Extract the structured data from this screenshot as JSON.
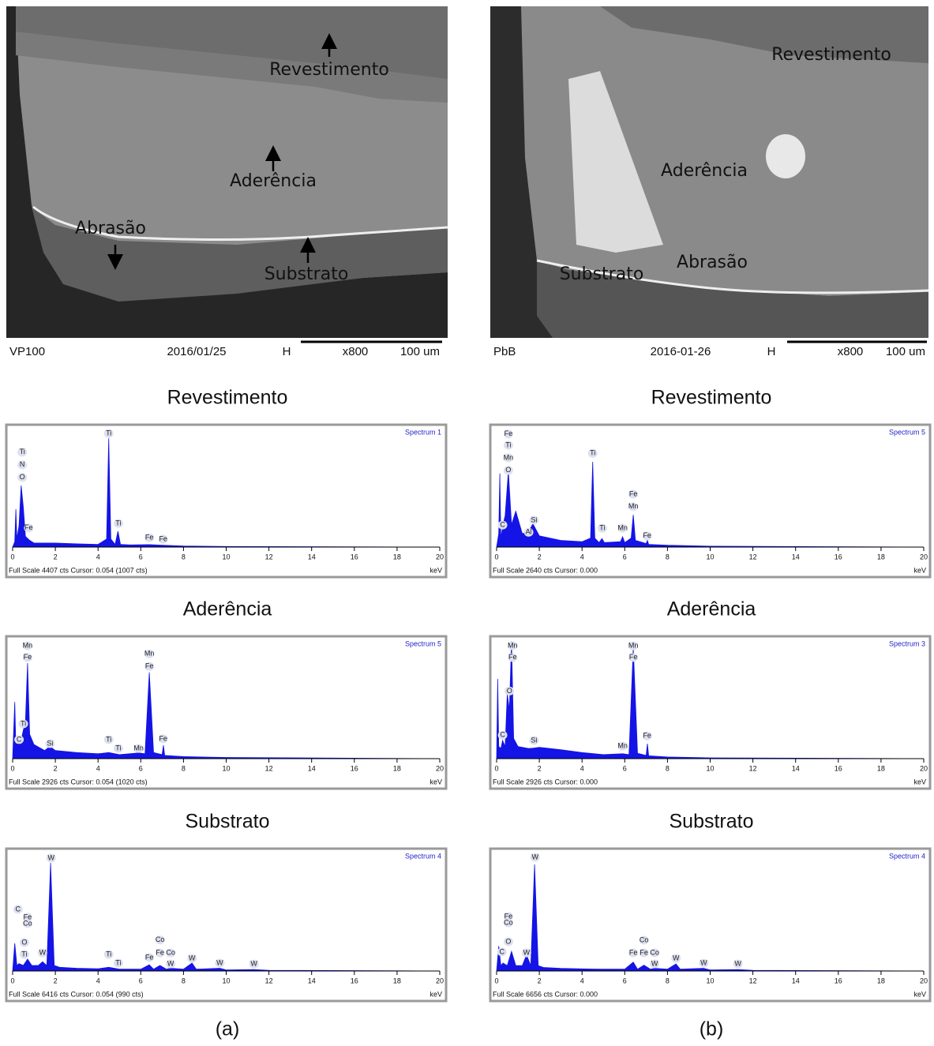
{
  "panels": [
    {
      "labels": [
        "Revestimento",
        "Aderência",
        "Abrasão",
        "Substrato"
      ],
      "info": [
        "VP100",
        "2016/01/25",
        "H",
        "x800",
        "100 um"
      ],
      "caption": "(a)"
    },
    {
      "labels": [
        "Revestimento",
        "Aderência",
        "Substrato",
        "Abrasão"
      ],
      "info": [
        "PbB",
        "2016-01-26",
        "H",
        "x800",
        "100 um"
      ],
      "caption": "(b)"
    }
  ],
  "chart_data": [
    {
      "type": "area",
      "title": "Revestimento",
      "spectrum": "Spectrum 1",
      "footer": "Full Scale 4407 cts Cursor: 0.054  (1007 cts)",
      "x_label": "keV",
      "color": "#1414e6",
      "xlim": [
        0,
        20
      ],
      "ylim": [
        0,
        4407
      ],
      "xticks": [
        0,
        2,
        4,
        6,
        8,
        10,
        12,
        14,
        16,
        18,
        20
      ],
      "x": [
        0,
        0.1,
        0.15,
        0.2,
        0.3,
        0.4,
        0.5,
        0.6,
        0.8,
        1,
        2,
        3,
        4,
        4.4,
        4.5,
        4.6,
        4.8,
        4.93,
        5.05,
        5.5,
        6.4,
        7,
        8,
        10,
        20
      ],
      "values": [
        0,
        200,
        1410,
        300,
        800,
        2290,
        1500,
        400,
        250,
        150,
        150,
        120,
        100,
        300,
        4050,
        300,
        100,
        590,
        100,
        80,
        90,
        70,
        40,
        20,
        0
      ],
      "annotations": [
        {
          "text": "Ti",
          "x": 0.45,
          "y": 3530
        },
        {
          "text": "N",
          "x": 0.45,
          "y": 3060
        },
        {
          "text": "O",
          "x": 0.45,
          "y": 2590
        },
        {
          "text": "Fe",
          "x": 0.75,
          "y": 710
        },
        {
          "text": "Ti",
          "x": 4.5,
          "y": 4230
        },
        {
          "text": "Ti",
          "x": 4.95,
          "y": 880
        },
        {
          "text": "Fe",
          "x": 6.4,
          "y": 350
        },
        {
          "text": "Fe",
          "x": 7.05,
          "y": 290
        }
      ]
    },
    {
      "type": "area",
      "title": "Revestimento",
      "spectrum": "Spectrum 5",
      "footer": "Full Scale 2640 cts Cursor: 0.000",
      "x_label": "keV",
      "color": "#1414e6",
      "xlim": [
        0,
        20
      ],
      "ylim": [
        0,
        2640
      ],
      "xticks": [
        0,
        2,
        4,
        6,
        8,
        10,
        12,
        14,
        16,
        18,
        20
      ],
      "x": [
        0,
        0.1,
        0.15,
        0.2,
        0.3,
        0.4,
        0.55,
        0.7,
        0.9,
        1.2,
        1.5,
        1.7,
        2,
        3,
        4,
        4.4,
        4.5,
        4.6,
        4.8,
        4.93,
        5.05,
        5.8,
        5.9,
        6.0,
        6.3,
        6.4,
        6.5,
        7.0,
        7.06,
        7.12,
        8,
        10,
        20
      ],
      "values": [
        0,
        300,
        1640,
        200,
        500,
        700,
        1690,
        500,
        800,
        300,
        350,
        520,
        250,
        150,
        120,
        200,
        1900,
        200,
        100,
        190,
        100,
        120,
        230,
        100,
        200,
        720,
        150,
        80,
        150,
        60,
        40,
        20,
        0
      ],
      "annotations": [
        {
          "text": "Fe",
          "x": 0.55,
          "y": 2520
        },
        {
          "text": "Ti",
          "x": 0.55,
          "y": 2270
        },
        {
          "text": "Mn",
          "x": 0.55,
          "y": 1990
        },
        {
          "text": "O",
          "x": 0.55,
          "y": 1710
        },
        {
          "text": "C",
          "x": 0.28,
          "y": 490
        },
        {
          "text": "Si",
          "x": 1.75,
          "y": 600
        },
        {
          "text": "Al",
          "x": 1.5,
          "y": 330
        },
        {
          "text": "Ti",
          "x": 4.5,
          "y": 2090
        },
        {
          "text": "Ti",
          "x": 4.95,
          "y": 420
        },
        {
          "text": "Mn",
          "x": 5.9,
          "y": 420
        },
        {
          "text": "Fe",
          "x": 6.4,
          "y": 1180
        },
        {
          "text": "Mn",
          "x": 6.4,
          "y": 900
        },
        {
          "text": "Fe",
          "x": 7.05,
          "y": 250
        }
      ]
    },
    {
      "type": "area",
      "title": "Aderência",
      "spectrum": "Spectrum 5",
      "footer": "Full Scale 2926 cts Cursor: 0.054  (1020 cts)",
      "x_label": "keV",
      "color": "#1414e6",
      "xlim": [
        0,
        20
      ],
      "ylim": [
        0,
        2926
      ],
      "xticks": [
        0,
        2,
        4,
        6,
        8,
        10,
        12,
        14,
        16,
        18,
        20
      ],
      "x": [
        0,
        0.1,
        0.15,
        0.2,
        0.3,
        0.4,
        0.5,
        0.6,
        0.7,
        0.8,
        1,
        1.5,
        1.74,
        2,
        3,
        4,
        4.5,
        5,
        5.9,
        6.2,
        6.4,
        6.6,
        7.0,
        7.06,
        7.12,
        8,
        10,
        20
      ],
      "values": [
        0,
        1400,
        300,
        400,
        550,
        450,
        700,
        900,
        2360,
        600,
        350,
        200,
        300,
        200,
        150,
        120,
        150,
        100,
        140,
        120,
        2130,
        150,
        100,
        330,
        80,
        50,
        30,
        0
      ],
      "annotations": [
        {
          "text": "Mn",
          "x": 0.7,
          "y": 2790
        },
        {
          "text": "Fe",
          "x": 0.7,
          "y": 2500
        },
        {
          "text": "Ti",
          "x": 0.5,
          "y": 860
        },
        {
          "text": "C",
          "x": 0.3,
          "y": 470
        },
        {
          "text": "Si",
          "x": 1.75,
          "y": 370
        },
        {
          "text": "Ti",
          "x": 4.5,
          "y": 470
        },
        {
          "text": "Ti",
          "x": 4.95,
          "y": 250
        },
        {
          "text": "Mn",
          "x": 5.9,
          "y": 250
        },
        {
          "text": "Mn",
          "x": 6.4,
          "y": 2590
        },
        {
          "text": "Fe",
          "x": 6.4,
          "y": 2280
        },
        {
          "text": "Fe",
          "x": 7.05,
          "y": 490
        }
      ]
    },
    {
      "type": "area",
      "title": "Aderência",
      "spectrum": "Spectrum 3",
      "footer": "Full Scale 2926 cts Cursor: 0.000",
      "x_label": "keV",
      "color": "#1414e6",
      "xlim": [
        0,
        20
      ],
      "ylim": [
        0,
        2926
      ],
      "xticks": [
        0,
        2,
        4,
        6,
        8,
        10,
        12,
        14,
        16,
        18,
        20
      ],
      "x": [
        0,
        0.05,
        0.1,
        0.2,
        0.28,
        0.4,
        0.5,
        0.6,
        0.7,
        0.8,
        1,
        1.5,
        1.74,
        2,
        3,
        4,
        5,
        5.9,
        6.2,
        6.4,
        6.6,
        7.0,
        7.06,
        7.12,
        8,
        10,
        20
      ],
      "values": [
        0,
        1970,
        300,
        250,
        450,
        300,
        1600,
        1200,
        2900,
        500,
        300,
        250,
        260,
        280,
        220,
        150,
        100,
        120,
        100,
        2750,
        130,
        80,
        370,
        70,
        40,
        20,
        0
      ],
      "annotations": [
        {
          "text": "Mn",
          "x": 0.75,
          "y": 2790
        },
        {
          "text": "Fe",
          "x": 0.75,
          "y": 2500
        },
        {
          "text": "O",
          "x": 0.6,
          "y": 1670
        },
        {
          "text": "C",
          "x": 0.28,
          "y": 580
        },
        {
          "text": "Si",
          "x": 1.75,
          "y": 450
        },
        {
          "text": "Mn",
          "x": 5.9,
          "y": 310
        },
        {
          "text": "Mn",
          "x": 6.4,
          "y": 2790
        },
        {
          "text": "Fe",
          "x": 6.4,
          "y": 2500
        },
        {
          "text": "Fe",
          "x": 7.05,
          "y": 560
        }
      ]
    },
    {
      "type": "area",
      "title": "Substrato",
      "spectrum": "Spectrum 4",
      "footer": "Full Scale 6416 cts Cursor: 0.054  (990 cts)",
      "x_label": "keV",
      "color": "#1414e6",
      "xlim": [
        0,
        20
      ],
      "ylim": [
        0,
        6416
      ],
      "xticks": [
        0,
        2,
        4,
        6,
        8,
        10,
        12,
        14,
        16,
        18,
        20
      ],
      "x": [
        0,
        0.1,
        0.2,
        0.3,
        0.5,
        0.7,
        0.9,
        1.2,
        1.4,
        1.6,
        1.78,
        1.95,
        2.2,
        3,
        4,
        4.5,
        5,
        6,
        6.4,
        6.6,
        6.9,
        7.2,
        7.4,
        8,
        8.4,
        8.6,
        9.7,
        10,
        11.3,
        12,
        20
      ],
      "values": [
        0,
        1500,
        300,
        400,
        300,
        640,
        300,
        300,
        500,
        300,
        5860,
        300,
        200,
        150,
        120,
        200,
        100,
        100,
        340,
        100,
        300,
        100,
        150,
        100,
        430,
        100,
        150,
        60,
        80,
        40,
        0
      ],
      "annotations": [
        {
          "text": "W",
          "x": 1.8,
          "y": 6120
        },
        {
          "text": "C",
          "x": 0.25,
          "y": 3340
        },
        {
          "text": "Fe",
          "x": 0.7,
          "y": 2910
        },
        {
          "text": "Co",
          "x": 0.7,
          "y": 2570
        },
        {
          "text": "O",
          "x": 0.55,
          "y": 1540
        },
        {
          "text": "W",
          "x": 1.4,
          "y": 980
        },
        {
          "text": "Ti",
          "x": 0.55,
          "y": 900
        },
        {
          "text": "Ti",
          "x": 4.5,
          "y": 900
        },
        {
          "text": "Ti",
          "x": 4.95,
          "y": 430
        },
        {
          "text": "Fe",
          "x": 6.4,
          "y": 730
        },
        {
          "text": "Co",
          "x": 6.9,
          "y": 1680
        },
        {
          "text": "Fe",
          "x": 6.9,
          "y": 980
        },
        {
          "text": "Co",
          "x": 7.4,
          "y": 980
        },
        {
          "text": "W",
          "x": 7.4,
          "y": 380
        },
        {
          "text": "W",
          "x": 8.4,
          "y": 680
        },
        {
          "text": "W",
          "x": 9.7,
          "y": 430
        },
        {
          "text": "W",
          "x": 11.3,
          "y": 380
        }
      ]
    },
    {
      "type": "area",
      "title": "Substrato",
      "spectrum": "Spectrum 4",
      "footer": "Full Scale 6656 cts Cursor: 0.000",
      "x_label": "keV",
      "color": "#1414e6",
      "xlim": [
        0,
        20
      ],
      "ylim": [
        0,
        6656
      ],
      "xticks": [
        0,
        2,
        4,
        6,
        8,
        10,
        12,
        14,
        16,
        18,
        20
      ],
      "x": [
        0,
        0.1,
        0.2,
        0.3,
        0.5,
        0.7,
        0.9,
        1.2,
        1.4,
        1.6,
        1.78,
        1.95,
        2.2,
        3,
        4,
        4.5,
        5,
        6,
        6.4,
        6.6,
        6.9,
        7.2,
        7.4,
        8,
        8.4,
        8.6,
        9.7,
        10,
        11.3,
        12,
        20
      ],
      "values": [
        0,
        1400,
        300,
        450,
        300,
        1100,
        300,
        300,
        900,
        300,
        5990,
        300,
        200,
        150,
        120,
        110,
        100,
        100,
        500,
        100,
        330,
        100,
        150,
        100,
        400,
        100,
        150,
        60,
        80,
        40,
        0
      ],
      "annotations": [
        {
          "text": "W",
          "x": 1.8,
          "y": 6390
        },
        {
          "text": "Fe",
          "x": 0.55,
          "y": 3060
        },
        {
          "text": "Co",
          "x": 0.55,
          "y": 2710
        },
        {
          "text": "O",
          "x": 0.55,
          "y": 1640
        },
        {
          "text": "C",
          "x": 0.25,
          "y": 1070
        },
        {
          "text": "W",
          "x": 1.4,
          "y": 1020
        },
        {
          "text": "Fe",
          "x": 6.4,
          "y": 1020
        },
        {
          "text": "Co",
          "x": 6.9,
          "y": 1730
        },
        {
          "text": "Fe",
          "x": 6.9,
          "y": 1020
        },
        {
          "text": "Co",
          "x": 7.4,
          "y": 1020
        },
        {
          "text": "W",
          "x": 7.4,
          "y": 400
        },
        {
          "text": "W",
          "x": 8.4,
          "y": 710
        },
        {
          "text": "W",
          "x": 9.7,
          "y": 440
        },
        {
          "text": "W",
          "x": 11.3,
          "y": 400
        }
      ]
    }
  ]
}
